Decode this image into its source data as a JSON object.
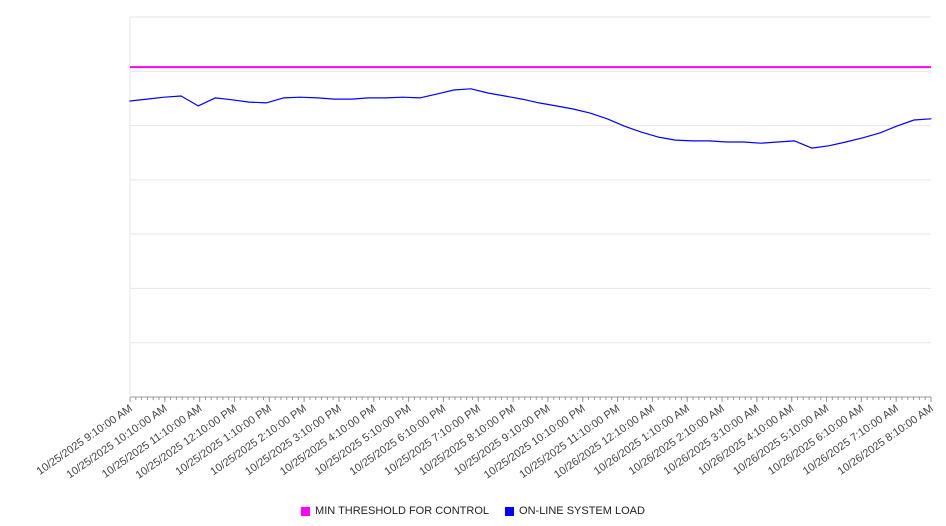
{
  "colors": {
    "background": "#ffffff",
    "gridline": "#e6e6e6",
    "axis": "#999999",
    "tick_mark": "#999999",
    "tick_label": "#444444",
    "threshold": "#ff00ff",
    "load_line": "#0000ff"
  },
  "chart_data": {
    "type": "line",
    "title": "",
    "xlabel": "",
    "ylabel": "",
    "y_axis": {
      "tick_labels_visible": false,
      "scale_note": "no y-axis tick labels visible; series values normalized 0-100 of plot height"
    },
    "ylim": [
      0,
      100
    ],
    "gridline_rows": 7,
    "x_tick_labels": [
      "10/25/2025 9:10:00 AM",
      "10/25/2025 10:10:00 AM",
      "10/25/2025 11:10:00 AM",
      "10/25/2025 12:10:00 PM",
      "10/25/2025 1:10:00 PM",
      "10/25/2025 2:10:00 PM",
      "10/25/2025 3:10:00 PM",
      "10/25/2025 4:10:00 PM",
      "10/25/2025 5:10:00 PM",
      "10/25/2025 6:10:00 PM",
      "10/25/2025 7:10:00 PM",
      "10/25/2025 8:10:00 PM",
      "10/25/2025 9:10:00 PM",
      "10/25/2025 10:10:00 PM",
      "10/25/2025 11:10:00 PM",
      "10/26/2025 12:10:00 AM",
      "10/26/2025 1:10:00 AM",
      "10/26/2025 2:10:00 AM",
      "10/26/2025 3:10:00 AM",
      "10/26/2025 4:10:00 AM",
      "10/26/2025 5:10:00 AM",
      "10/26/2025 6:10:00 AM",
      "10/26/2025 7:10:00 AM",
      "10/26/2025 8:10:00 AM"
    ],
    "series": [
      {
        "name": "MIN THRESHOLD FOR CONTROL",
        "color": "#ff00ff",
        "style": "constant-threshold",
        "value": 86.8
      },
      {
        "name": "ON-LINE SYSTEM LOAD",
        "color": "#0000ff",
        "style": "line",
        "values": [
          77.9,
          78.4,
          78.9,
          79.2,
          76.6,
          78.7,
          78.2,
          77.6,
          77.4,
          78.7,
          78.9,
          78.7,
          78.4,
          78.4,
          78.7,
          78.7,
          78.9,
          78.7,
          79.7,
          80.8,
          81.1,
          80.0,
          79.2,
          78.4,
          77.4,
          76.6,
          75.8,
          74.7,
          73.2,
          71.3,
          69.7,
          68.4,
          67.6,
          67.4,
          67.4,
          67.1,
          67.1,
          66.8,
          67.1,
          67.4,
          65.5,
          66.1,
          67.1,
          68.2,
          69.5,
          71.3,
          72.9,
          73.2
        ]
      }
    ],
    "legend": {
      "position": "bottom-center",
      "items": [
        {
          "label": "MIN THRESHOLD FOR CONTROL",
          "color": "#ff00ff"
        },
        {
          "label": "ON-LINE SYSTEM LOAD",
          "color": "#0000ff"
        }
      ]
    }
  }
}
